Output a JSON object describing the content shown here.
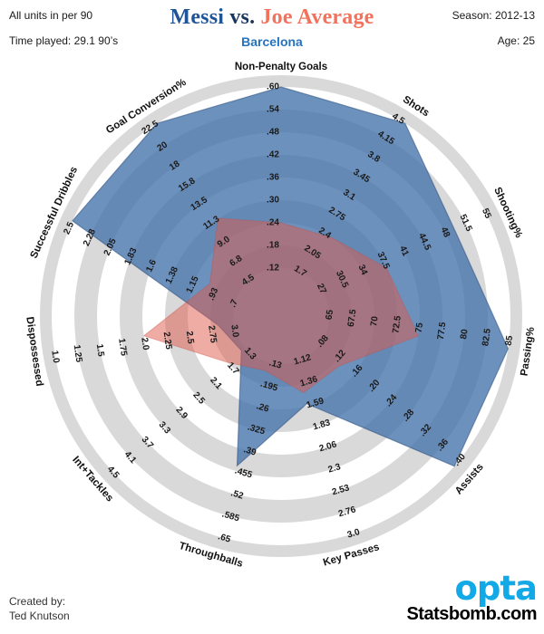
{
  "header": {
    "left_line1": "All units in per 90",
    "left_line2": "Time played: 29.1 90’s",
    "title_player1": "Messi",
    "title_vs": "vs.",
    "title_player2": "Joe Average",
    "subtitle": "Barcelona",
    "right_line1": "Season: 2012-13",
    "right_line2": "Age: 25"
  },
  "footer": {
    "created_by_label": "Created by:",
    "created_by_name": "Ted Knutson",
    "logo_text": "opta",
    "site": "Statsbomb.com"
  },
  "colors": {
    "messi_fill": "rgba(68,114,170,0.78)",
    "messi_stroke": "rgba(45,80,125,0.55)",
    "joe_fill": "rgba(222,90,75,0.50)",
    "joe_stroke": "rgba(200,75,60,0.35)",
    "band_gray": "#d9d9d9",
    "band_white": "#ffffff",
    "tick_text": "#1a1a1a",
    "axis_text": "#111111",
    "title_player1": "#1f5597",
    "title_vs": "#17365d",
    "title_player2": "#f4715b",
    "subtitle": "#2573be",
    "opta": "#12a9e6"
  },
  "chart_data": {
    "type": "radar",
    "title": "Messi vs. Joe Average",
    "rings": 9,
    "axes": [
      {
        "label": "Non-Penalty Goals",
        "ticks": [
          ".60",
          ".54",
          ".48",
          ".42",
          ".36",
          ".30",
          ".24",
          ".18",
          ".12"
        ],
        "outer": 0.6,
        "inner": 0.12
      },
      {
        "label": "Shots",
        "ticks": [
          "4.5",
          "4.15",
          "3.8",
          "3.45",
          "3.1",
          "2.75",
          "2.4",
          "2.05",
          "1.7"
        ],
        "outer": 4.5,
        "inner": 1.7
      },
      {
        "label": "Shooting%",
        "ticks": [
          "55",
          "51.5",
          "48",
          "44.5",
          "41",
          "37.5",
          "34",
          "30.5",
          "27"
        ],
        "outer": 55,
        "inner": 27
      },
      {
        "label": "Passing%",
        "ticks": [
          "85",
          "82.5",
          "80",
          "77.5",
          "75",
          "72.5",
          "70",
          "67.5",
          "65"
        ],
        "outer": 85,
        "inner": 65
      },
      {
        "label": "Assists",
        "ticks": [
          ".40",
          ".36",
          ".32",
          ".28",
          ".24",
          ".20",
          ".16",
          ".12",
          ".08"
        ],
        "outer": 0.4,
        "inner": 0.08
      },
      {
        "label": "Key Passes",
        "ticks": [
          "3.0",
          "2.76",
          "2.53",
          "2.3",
          "2.06",
          "1.83",
          "1.59",
          "1.36",
          "1.12"
        ],
        "outer": 3.0,
        "inner": 1.12
      },
      {
        "label": "Throughballs",
        "ticks": [
          ".65",
          ".585",
          ".52",
          ".455",
          ".39",
          ".325",
          ".26",
          ".195",
          ".13"
        ],
        "outer": 0.65,
        "inner": 0.13
      },
      {
        "label": "Int+Tackles",
        "ticks": [
          "4.5",
          "4.1",
          "3.7",
          "3.3",
          "2.9",
          "2.5",
          "2.1",
          "1.7",
          "1.3"
        ],
        "outer": 4.5,
        "inner": 1.3
      },
      {
        "label": "Dispossessed",
        "ticks": [
          "1.0",
          "1.25",
          "1.5",
          "1.75",
          "2.0",
          "2.25",
          "2.5",
          "2.75",
          "3.0"
        ],
        "outer": 1.0,
        "inner": 3.0
      },
      {
        "label": "Successful Dribbles",
        "ticks": [
          "2.5",
          "2.28",
          "2.05",
          "1.83",
          "1.6",
          "1.38",
          "1.15",
          ".93",
          ".7"
        ],
        "outer": 2.5,
        "inner": 0.7
      },
      {
        "label": "Goal Conversion%",
        "ticks": [
          "22.5",
          "20",
          "18",
          "15.8",
          "13.5",
          "11.3",
          "9.0",
          "6.8",
          "4.5"
        ],
        "outer": 22.5,
        "inner": 4.5
      }
    ],
    "series": [
      {
        "name": "Messi",
        "values": [
          0.6,
          4.5,
          49.5,
          85,
          0.4,
          1.57,
          0.44,
          1.38,
          2.83,
          2.5,
          22.5
        ]
      },
      {
        "name": "Joe Average",
        "values": [
          0.24,
          2.4,
          37.5,
          75,
          0.13,
          1.45,
          0.155,
          1.7,
          2.0,
          1.0,
          11.3
        ]
      }
    ]
  }
}
